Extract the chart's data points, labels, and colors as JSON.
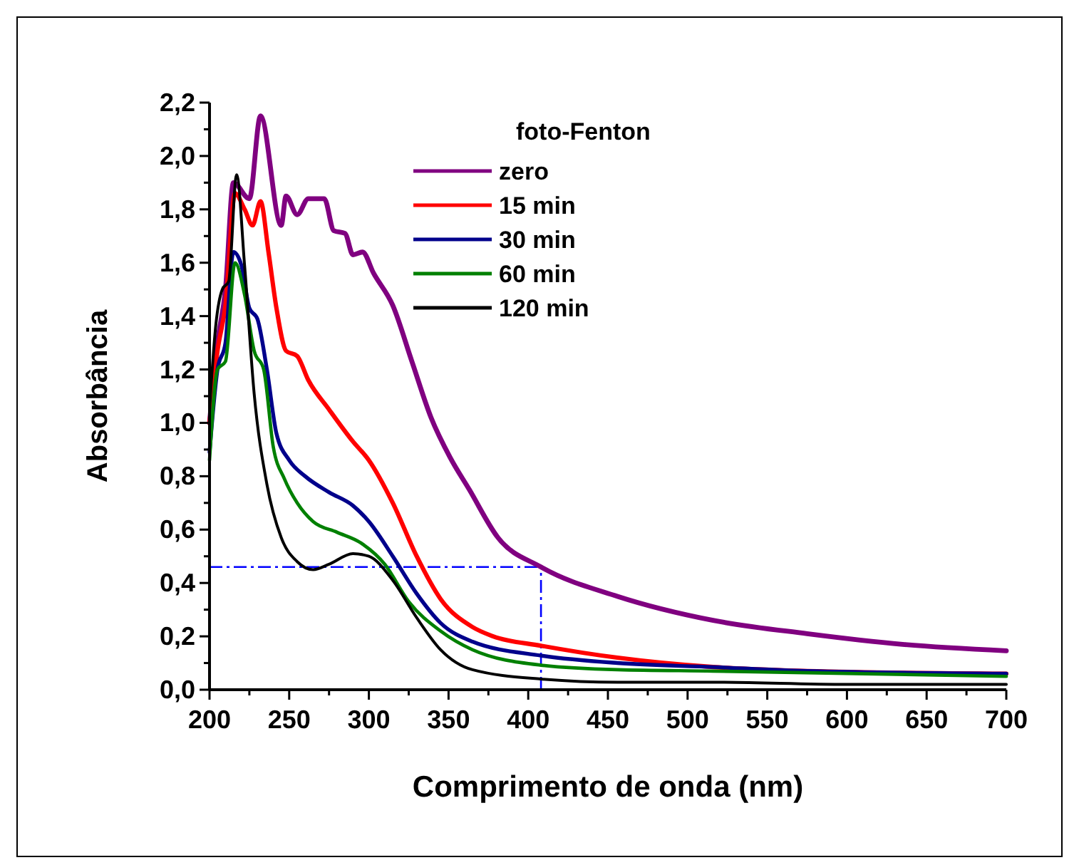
{
  "chart_data": {
    "type": "line",
    "xlabel": "Comprimento de onda (nm)",
    "ylabel": "Absorbância",
    "legend_title": "foto-Fenton",
    "legend": "top",
    "grid": false,
    "marker": "none",
    "line_style": "solid",
    "xlim": [
      200,
      700
    ],
    "ylim": [
      0,
      2.2
    ],
    "xticks": [
      200,
      {
        "value": 225,
        "label": null
      },
      250,
      {
        "value": 275,
        "label": null
      },
      300,
      {
        "value": 325,
        "label": null
      },
      350,
      {
        "value": 375,
        "label": null
      },
      400,
      {
        "value": 425,
        "label": null
      },
      450,
      {
        "value": 475,
        "label": null
      },
      500,
      {
        "value": 525,
        "label": null
      },
      550,
      {
        "value": 575,
        "label": null
      },
      600,
      {
        "value": 625,
        "label": null
      },
      650,
      {
        "value": 675,
        "label": null
      },
      700
    ],
    "yticks": [
      {
        "value": 0,
        "label": "0,0"
      },
      {
        "value": 0.1,
        "label": null
      },
      {
        "value": 0.2,
        "label": "0,2"
      },
      {
        "value": 0.3,
        "label": null
      },
      {
        "value": 0.4,
        "label": "0,4"
      },
      {
        "value": 0.5,
        "label": null
      },
      {
        "value": 0.6,
        "label": "0,6"
      },
      {
        "value": 0.7,
        "label": null
      },
      {
        "value": 0.8,
        "label": "0,8"
      },
      {
        "value": 0.9,
        "label": null
      },
      {
        "value": 1,
        "label": "1,0"
      },
      {
        "value": 1.1,
        "label": null
      },
      {
        "value": 1.2,
        "label": "1,2"
      },
      {
        "value": 1.3,
        "label": null
      },
      {
        "value": 1.4,
        "label": "1,4"
      },
      {
        "value": 1.5,
        "label": null
      },
      {
        "value": 1.6,
        "label": "1,6"
      },
      {
        "value": 1.7,
        "label": null
      },
      {
        "value": 1.8,
        "label": "1,8"
      },
      {
        "value": 1.9,
        "label": null
      },
      {
        "value": 2,
        "label": "2,0"
      },
      {
        "value": 2.1,
        "label": null
      },
      {
        "value": 2.2,
        "label": "2,2"
      }
    ],
    "ref_lines": [
      {
        "axis": "y",
        "value": 0.46,
        "color": "#0000ff",
        "line_style": "dashed"
      },
      {
        "axis": "x",
        "value": 408,
        "color": "#0000ff",
        "line_style": "dashed"
      }
    ],
    "series": [
      {
        "name": "zero",
        "color": "#800080",
        "x": [
          200,
          205,
          210,
          215,
          225,
          232,
          245,
          248,
          255,
          262,
          272,
          278,
          285,
          290,
          296,
          303,
          315,
          327,
          339,
          351,
          363,
          381,
          408,
          456,
          516,
          575,
          635,
          700
        ],
        "values": [
          1.0,
          1.3,
          1.5,
          1.9,
          1.84,
          2.15,
          1.74,
          1.85,
          1.78,
          1.84,
          1.84,
          1.72,
          1.71,
          1.63,
          1.64,
          1.56,
          1.44,
          1.23,
          1.02,
          0.87,
          0.75,
          0.57,
          0.46,
          0.35,
          0.26,
          0.21,
          0.17,
          0.146
        ]
      },
      {
        "name": "15 min",
        "color": "#ff0000",
        "x": [
          200,
          205,
          210,
          216,
          222,
          227,
          232,
          237,
          242,
          248,
          255,
          262,
          275,
          290,
          300,
          315,
          330,
          345,
          365,
          378,
          408,
          456,
          516,
          575,
          700
        ],
        "values": [
          1.0,
          1.27,
          1.44,
          1.86,
          1.8,
          1.74,
          1.83,
          1.64,
          1.43,
          1.27,
          1.25,
          1.16,
          1.05,
          0.93,
          0.86,
          0.7,
          0.5,
          0.34,
          0.235,
          0.2,
          0.165,
          0.12,
          0.085,
          0.07,
          0.06
        ]
      },
      {
        "name": "30 min",
        "color": "#00008b",
        "x": [
          200,
          205,
          210,
          215,
          220,
          225,
          230,
          236,
          242,
          250,
          260,
          275,
          290,
          300,
          315,
          330,
          345,
          365,
          408,
          456,
          516,
          575,
          700
        ],
        "values": [
          0.89,
          1.2,
          1.3,
          1.64,
          1.59,
          1.43,
          1.39,
          1.2,
          0.96,
          0.86,
          0.8,
          0.74,
          0.69,
          0.63,
          0.5,
          0.36,
          0.25,
          0.18,
          0.128,
          0.1,
          0.085,
          0.07,
          0.06
        ]
      },
      {
        "name": "60 min",
        "color": "#008000",
        "x": [
          200,
          205,
          210,
          216,
          222,
          228,
          234,
          240,
          247,
          255,
          265,
          280,
          295,
          310,
          325,
          345,
          365,
          408,
          456,
          516,
          700
        ],
        "values": [
          0.86,
          1.2,
          1.23,
          1.6,
          1.48,
          1.27,
          1.2,
          0.91,
          0.79,
          0.7,
          0.63,
          0.59,
          0.55,
          0.47,
          0.33,
          0.22,
          0.15,
          0.092,
          0.075,
          0.07,
          0.05
        ]
      },
      {
        "name": "120 min",
        "color": "#000000",
        "x": [
          200,
          204,
          208,
          212,
          217,
          222,
          228,
          236,
          245,
          255,
          265,
          275,
          290,
          300,
          315,
          330,
          345,
          365,
          408,
          456,
          516,
          600,
          700
        ],
        "values": [
          1.05,
          1.37,
          1.5,
          1.53,
          1.93,
          1.59,
          1.11,
          0.77,
          0.57,
          0.48,
          0.45,
          0.47,
          0.51,
          0.5,
          0.41,
          0.27,
          0.15,
          0.075,
          0.04,
          0.028,
          0.028,
          0.02,
          0.02
        ]
      }
    ]
  }
}
